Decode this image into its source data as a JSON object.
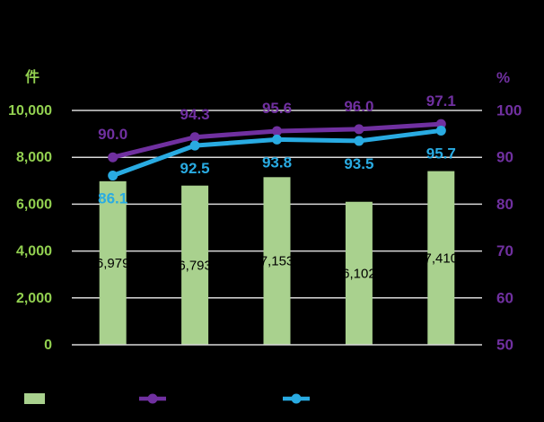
{
  "chart_data": {
    "type": "combo-bar-line",
    "background": "#000000",
    "unit_left": "件",
    "unit_right": "%",
    "left_axis": {
      "ticks": [
        "10,000",
        "8,000",
        "6,000",
        "4,000",
        "2,000",
        "0"
      ],
      "min": 0,
      "max": 10000,
      "color": "#92D050"
    },
    "right_axis": {
      "ticks": [
        "100",
        "90",
        "80",
        "70",
        "60",
        "50"
      ],
      "min": 50,
      "max": 100,
      "color": "#7030A0"
    },
    "bars": {
      "name": "case-count-bars",
      "values": [
        6979,
        6793,
        7153,
        6102,
        7410
      ],
      "labels": [
        "6,979",
        "6,793",
        "7,153",
        "6,102",
        "7,410"
      ],
      "color": "#A9D18E",
      "label_color": "#000000"
    },
    "series": [
      {
        "name": "rate-line-purple",
        "values": [
          90.0,
          94.3,
          95.6,
          96.0,
          97.1
        ],
        "labels": [
          "90.0",
          "94.3",
          "95.6",
          "96.0",
          "97.1"
        ],
        "color": "#7030A0",
        "label_offset": -20
      },
      {
        "name": "rate-line-blue",
        "values": [
          86.1,
          92.5,
          93.8,
          93.5,
          95.7
        ],
        "labels": [
          "86.1",
          "92.5",
          "93.8",
          "93.5",
          "95.7"
        ],
        "color": "#29ABE2",
        "label_offset": 31
      }
    ],
    "grid": {
      "show": true,
      "color": "#D9D9D9"
    },
    "legend": {
      "position": "bottom",
      "items": [
        {
          "marker": "bar-swatch",
          "color": "#A9D18E"
        },
        {
          "marker": "line-dot",
          "color": "#7030A0"
        },
        {
          "marker": "line-dot",
          "color": "#29ABE2"
        }
      ]
    }
  }
}
